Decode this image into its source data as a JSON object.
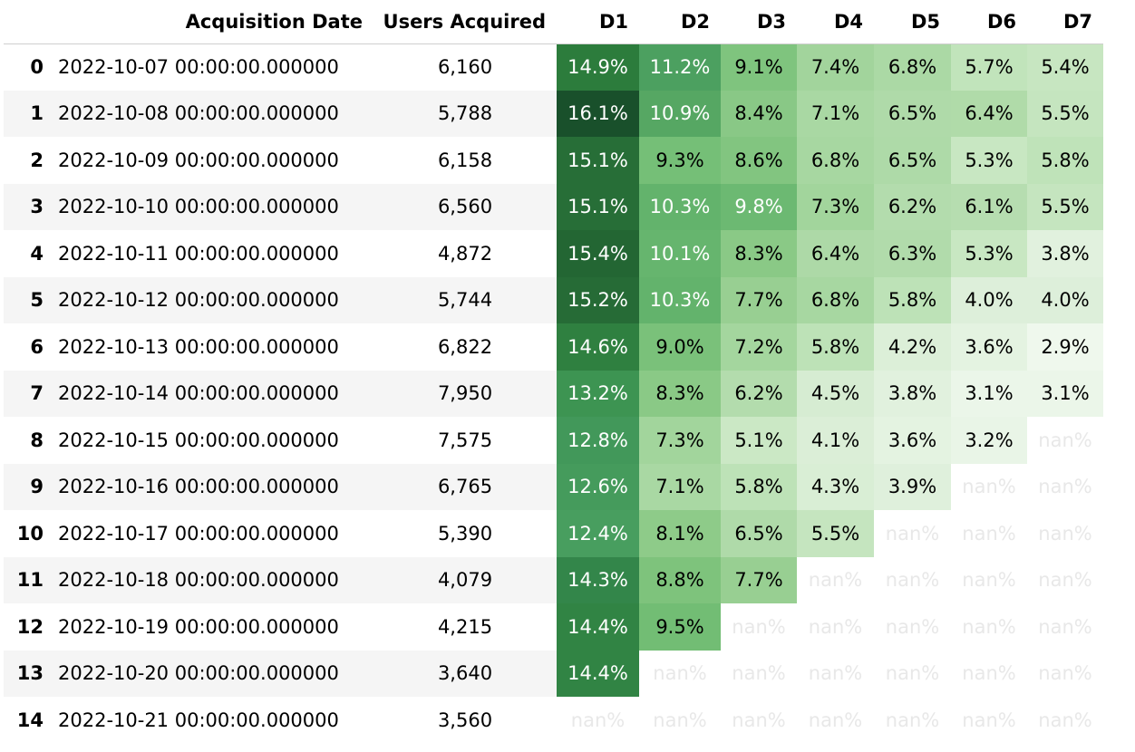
{
  "columns": [
    "",
    "Acquisition Date",
    "Users Acquired",
    "D1",
    "D2",
    "D3",
    "D4",
    "D5",
    "D6",
    "D7"
  ],
  "rows": [
    {
      "index": "0",
      "date": "2022-10-07 00:00:00.000000",
      "users": "6,160",
      "d": [
        "14.9%",
        "11.2%",
        "9.1%",
        "7.4%",
        "6.8%",
        "5.7%",
        "5.4%"
      ],
      "bg": [
        "#2c7c3c",
        "#4ca060",
        "#7fc47e",
        "#a2d49c",
        "#abd9a5",
        "#c1e4bb",
        "#c7e6c1"
      ],
      "fg": [
        "#ffffff",
        "#ffffff",
        "#000000",
        "#000000",
        "#000000",
        "#000000",
        "#000000"
      ]
    },
    {
      "index": "1",
      "date": "2022-10-08 00:00:00.000000",
      "users": "5,788",
      "d": [
        "16.1%",
        "10.9%",
        "8.4%",
        "7.1%",
        "6.5%",
        "6.4%",
        "5.5%"
      ],
      "bg": [
        "#19502b",
        "#56a763",
        "#89c886",
        "#a9d8a3",
        "#afdaa9",
        "#b0dba9",
        "#c5e5bf"
      ],
      "fg": [
        "#ffffff",
        "#ffffff",
        "#000000",
        "#000000",
        "#000000",
        "#000000",
        "#000000"
      ]
    },
    {
      "index": "2",
      "date": "2022-10-09 00:00:00.000000",
      "users": "6,158",
      "d": [
        "15.1%",
        "9.3%",
        "8.6%",
        "6.8%",
        "6.5%",
        "5.3%",
        "5.8%"
      ],
      "bg": [
        "#276e37",
        "#75bf77",
        "#82c580",
        "#a7d7a1",
        "#aeda a8",
        "#c8e7c2",
        "#bfe3b9"
      ],
      "fg": [
        "#ffffff",
        "#000000",
        "#000000",
        "#000000",
        "#000000",
        "#000000",
        "#000000"
      ]
    },
    {
      "index": "3",
      "date": "2022-10-10 00:00:00.000000",
      "users": "6,560",
      "d": [
        "15.1%",
        "10.3%",
        "9.8%",
        "7.3%",
        "6.2%",
        "6.1%",
        "5.5%"
      ],
      "bg": [
        "#276e37",
        "#63b36c",
        "#6cb972",
        "#a2d59c",
        "#b3dcad",
        "#b6ddb0",
        "#c5e5bf"
      ],
      "fg": [
        "#ffffff",
        "#ffffff",
        "#ffffff",
        "#000000",
        "#000000",
        "#000000",
        "#000000"
      ]
    },
    {
      "index": "4",
      "date": "2022-10-11 00:00:00.000000",
      "users": "4,872",
      "d": [
        "15.4%",
        "10.1%",
        "8.3%",
        "6.4%",
        "6.3%",
        "5.3%",
        "3.8%"
      ],
      "bg": [
        "#236633",
        "#66b56e",
        "#8ac986",
        "#add9a7",
        "#b1dbab",
        "#c8e7c2",
        "#e1f1de"
      ],
      "fg": [
        "#ffffff",
        "#ffffff",
        "#000000",
        "#000000",
        "#000000",
        "#000000",
        "#000000"
      ]
    },
    {
      "index": "5",
      "date": "2022-10-12 00:00:00.000000",
      "users": "5,744",
      "d": [
        "15.2%",
        "10.3%",
        "7.7%",
        "6.8%",
        "5.8%",
        "4.0%",
        "4.0%"
      ],
      "bg": [
        "#266b36",
        "#63b36c",
        "#98cf92",
        "#a7d7a1",
        "#bde2b7",
        "#ddefda",
        "#ddefda"
      ],
      "fg": [
        "#ffffff",
        "#ffffff",
        "#000000",
        "#000000",
        "#000000",
        "#000000",
        "#000000"
      ]
    },
    {
      "index": "6",
      "date": "2022-10-13 00:00:00.000000",
      "users": "6,822",
      "d": [
        "14.6%",
        "9.0%",
        "7.2%",
        "5.8%",
        "4.2%",
        "3.6%",
        "2.9%"
      ],
      "bg": [
        "#2f8040",
        "#7ac17a",
        "#a4d69e",
        "#bde2b7",
        "#dcefd8",
        "#e4f3e1",
        "#eff8ed"
      ],
      "fg": [
        "#ffffff",
        "#000000",
        "#000000",
        "#000000",
        "#000000",
        "#000000",
        "#000000"
      ]
    },
    {
      "index": "7",
      "date": "2022-10-14 00:00:00.000000",
      "users": "7,950",
      "d": [
        "13.2%",
        "8.3%",
        "6.2%",
        "4.5%",
        "3.8%",
        "3.1%",
        "3.1%"
      ],
      "bg": [
        "#3d9452",
        "#8ac986",
        "#b3dcad",
        "#d6ecd2",
        "#e1f1de",
        "#ebf6e9",
        "#ebf6e9"
      ],
      "fg": [
        "#ffffff",
        "#000000",
        "#000000",
        "#000000",
        "#000000",
        "#000000",
        "#000000"
      ]
    },
    {
      "index": "8",
      "date": "2022-10-15 00:00:00.000000",
      "users": "7,575",
      "d": [
        "12.8%",
        "7.3%",
        "5.1%",
        "4.1%",
        "3.6%",
        "3.2%",
        "nan%"
      ],
      "bg": [
        "#42985a",
        "#a2d59c",
        "#cbe8c5",
        "#dbeed7",
        "#e4f3e1",
        "#e9f5e7",
        "#ffffff"
      ],
      "fg": [
        "#ffffff",
        "#000000",
        "#000000",
        "#000000",
        "#000000",
        "#000000",
        "#e8e8e8"
      ]
    },
    {
      "index": "9",
      "date": "2022-10-16 00:00:00.000000",
      "users": "6,765",
      "d": [
        "12.6%",
        "7.1%",
        "5.8%",
        "4.3%",
        "3.9%",
        "nan%",
        "nan%"
      ],
      "bg": [
        "#459b5c",
        "#a9d8a3",
        "#bde2b7",
        "#d9eed5",
        "#dff0dc",
        "#ffffff",
        "#ffffff"
      ],
      "fg": [
        "#ffffff",
        "#000000",
        "#000000",
        "#000000",
        "#000000",
        "#e8e8e8",
        "#e8e8e8"
      ]
    },
    {
      "index": "10",
      "date": "2022-10-17 00:00:00.000000",
      "users": "5,390",
      "d": [
        "12.4%",
        "8.1%",
        "6.5%",
        "5.5%",
        "nan%",
        "nan%",
        "nan%"
      ],
      "bg": [
        "#489e5f",
        "#8ecb89",
        "#afdaa9",
        "#c5e5bf",
        "#ffffff",
        "#ffffff",
        "#ffffff"
      ],
      "fg": [
        "#ffffff",
        "#000000",
        "#000000",
        "#000000",
        "#e8e8e8",
        "#e8e8e8",
        "#e8e8e8"
      ]
    },
    {
      "index": "11",
      "date": "2022-10-18 00:00:00.000000",
      "users": "4,079",
      "d": [
        "14.3%",
        "8.8%",
        "7.7%",
        "nan%",
        "nan%",
        "nan%",
        "nan%"
      ],
      "bg": [
        "#33864a",
        "#7ec37c",
        "#98cf92",
        "#ffffff",
        "#ffffff",
        "#ffffff",
        "#ffffff"
      ],
      "fg": [
        "#ffffff",
        "#000000",
        "#000000",
        "#e8e8e8",
        "#e8e8e8",
        "#e8e8e8",
        "#e8e8e8"
      ]
    },
    {
      "index": "12",
      "date": "2022-10-19 00:00:00.000000",
      "users": "4,215",
      "d": [
        "14.4%",
        "9.5%",
        "nan%",
        "nan%",
        "nan%",
        "nan%",
        "nan%"
      ],
      "bg": [
        "#318444",
        "#72bd74",
        "#ffffff",
        "#ffffff",
        "#ffffff",
        "#ffffff",
        "#ffffff"
      ],
      "fg": [
        "#ffffff",
        "#000000",
        "#e8e8e8",
        "#e8e8e8",
        "#e8e8e8",
        "#e8e8e8",
        "#e8e8e8"
      ]
    },
    {
      "index": "13",
      "date": "2022-10-20 00:00:00.000000",
      "users": "3,640",
      "d": [
        "14.4%",
        "nan%",
        "nan%",
        "nan%",
        "nan%",
        "nan%",
        "nan%"
      ],
      "bg": [
        "#318444",
        "#ffffff",
        "#ffffff",
        "#ffffff",
        "#ffffff",
        "#ffffff",
        "#ffffff"
      ],
      "fg": [
        "#ffffff",
        "#e8e8e8",
        "#e8e8e8",
        "#e8e8e8",
        "#e8e8e8",
        "#e8e8e8",
        "#e8e8e8"
      ]
    },
    {
      "index": "14",
      "date": "2022-10-21 00:00:00.000000",
      "users": "3,560",
      "d": [
        "nan%",
        "nan%",
        "nan%",
        "nan%",
        "nan%",
        "nan%",
        "nan%"
      ],
      "bg": [
        "#ffffff",
        "#ffffff",
        "#ffffff",
        "#ffffff",
        "#ffffff",
        "#ffffff",
        "#ffffff"
      ],
      "fg": [
        "#e8e8e8",
        "#e8e8e8",
        "#e8e8e8",
        "#e8e8e8",
        "#e8e8e8",
        "#e8e8e8",
        "#e8e8e8"
      ]
    }
  ]
}
